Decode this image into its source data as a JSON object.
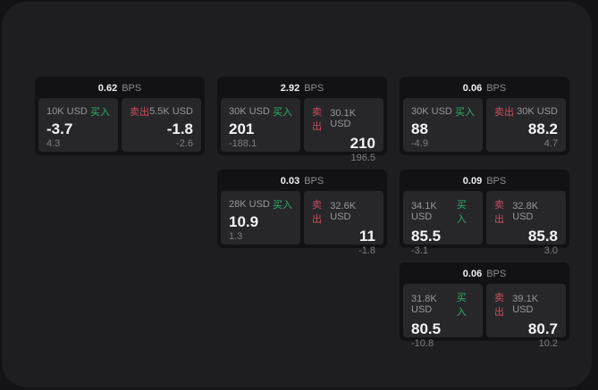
{
  "labels": {
    "buy": "买入",
    "sell": "卖出",
    "bps": "BPS"
  },
  "colors": {
    "backdrop": "#131315",
    "surface": "#1e1e20",
    "card_bg": "#121214",
    "panel_bg": "#27272a",
    "buy_green": "#2fae68",
    "sell_red": "#c94f5e",
    "value_white": "#f4f4f5",
    "muted_gray": "#97979a"
  },
  "cards": [
    {
      "bps": "0.62",
      "buy": {
        "notional": "10K USD",
        "value": "-3.7",
        "sub": "4.3"
      },
      "sell": {
        "notional": "5.5K USD",
        "value": "-1.8",
        "sub": "-2.6"
      }
    },
    {
      "bps": "2.92",
      "buy": {
        "notional": "30K USD",
        "value": "201",
        "sub": "-188.1"
      },
      "sell": {
        "notional": "30.1K USD",
        "value": "210",
        "sub": "196.5"
      }
    },
    {
      "bps": "0.06",
      "buy": {
        "notional": "30K USD",
        "value": "88",
        "sub": "-4.9"
      },
      "sell": {
        "notional": "30K USD",
        "value": "88.2",
        "sub": "4.7"
      }
    },
    {
      "bps": "0.03",
      "buy": {
        "notional": "28K USD",
        "value": "10.9",
        "sub": "1.3"
      },
      "sell": {
        "notional": "32.6K USD",
        "value": "11",
        "sub": "-1.8"
      }
    },
    {
      "bps": "0.09",
      "buy": {
        "notional": "34.1K USD",
        "value": "85.5",
        "sub": "-3.1"
      },
      "sell": {
        "notional": "32.8K USD",
        "value": "85.8",
        "sub": "3.0"
      }
    },
    {
      "bps": "0.06",
      "buy": {
        "notional": "31.8K USD",
        "value": "80.5",
        "sub": "-10.8"
      },
      "sell": {
        "notional": "39.1K USD",
        "value": "80.7",
        "sub": "10.2"
      }
    }
  ]
}
